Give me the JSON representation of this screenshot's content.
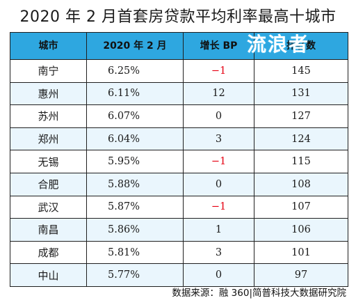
{
  "title": "2020 年 2 月首套房贷款平均利率最高十城市",
  "table": {
    "headers": [
      "城市",
      "2020 年 2 月",
      "增长 BP",
      "排名数"
    ],
    "rows": [
      {
        "city": "南宁",
        "rate": "6.25%",
        "bp": "−1",
        "rank": "145"
      },
      {
        "city": "惠州",
        "rate": "6.11%",
        "bp": "12",
        "rank": "131"
      },
      {
        "city": "苏州",
        "rate": "6.07%",
        "bp": "0",
        "rank": "127"
      },
      {
        "city": "郑州",
        "rate": "6.04%",
        "bp": "3",
        "rank": "124"
      },
      {
        "city": "无锡",
        "rate": "5.95%",
        "bp": "−1",
        "rank": "115"
      },
      {
        "city": "合肥",
        "rate": "5.88%",
        "bp": "0",
        "rank": "108"
      },
      {
        "city": "武汉",
        "rate": "5.87%",
        "bp": "−1",
        "rank": "107"
      },
      {
        "city": "南昌",
        "rate": "5.86%",
        "bp": "1",
        "rank": "106"
      },
      {
        "city": "成都",
        "rate": "5.81%",
        "bp": "3",
        "rank": "101"
      },
      {
        "city": "中山",
        "rate": "5.77%",
        "bp": "0",
        "rank": "97"
      }
    ]
  },
  "watermark": "流浪者",
  "source": "数据来源：融 360|简普科技大数据研究院",
  "colors": {
    "header_bg": "#2ea7e0",
    "negative": "#e60012",
    "stripe": "#eaf6fd"
  }
}
